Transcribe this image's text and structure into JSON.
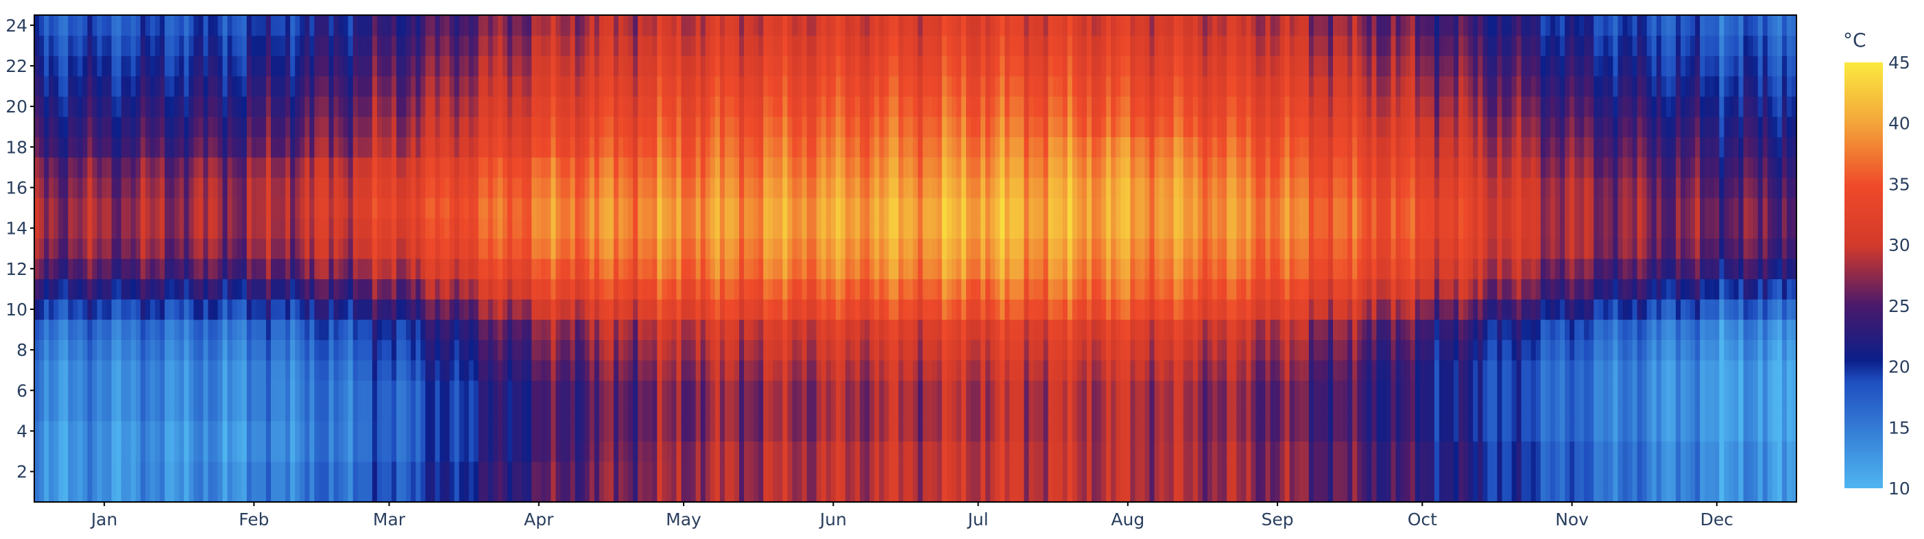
{
  "chart_data": {
    "type": "heatmap",
    "title": "",
    "xlabel": "",
    "ylabel": "",
    "x_tick_labels": [
      "Jan",
      "Feb",
      "Mar",
      "Apr",
      "May",
      "Jun",
      "Jul",
      "Aug",
      "Sep",
      "Oct",
      "Nov",
      "Dec"
    ],
    "y_ticks": [
      2,
      4,
      6,
      8,
      10,
      12,
      14,
      16,
      18,
      20,
      22,
      24
    ],
    "y_range": [
      0.5,
      24.5
    ],
    "x_range_days": [
      1,
      365
    ],
    "colorbar": {
      "title": "°C",
      "range": [
        10,
        45
      ],
      "ticks": [
        10,
        15,
        20,
        25,
        30,
        35,
        40,
        45
      ],
      "colorscale": [
        [
          0.0,
          "#4fb5f0"
        ],
        [
          0.25,
          "#1f4fc0"
        ],
        [
          0.3,
          "#0b1f8a"
        ],
        [
          0.43,
          "#4a1a6b"
        ],
        [
          0.57,
          "#d23a2a"
        ],
        [
          0.71,
          "#ef4a2a"
        ],
        [
          0.86,
          "#f3a63a"
        ],
        [
          1.0,
          "#fbe93f"
        ]
      ]
    },
    "series": [
      {
        "name": "Jan",
        "profile": [
          13,
          13,
          13,
          13,
          14,
          14,
          14,
          15,
          16,
          19,
          22,
          25,
          27,
          28,
          28,
          27,
          26,
          24,
          23,
          22,
          21,
          20,
          19,
          18
        ]
      },
      {
        "name": "Feb",
        "profile": [
          14,
          14,
          13,
          13,
          14,
          14,
          14,
          15,
          16,
          19,
          22,
          25,
          27,
          28,
          28,
          28,
          27,
          25,
          24,
          23,
          22,
          21,
          20,
          19
        ]
      },
      {
        "name": "Mar",
        "profile": [
          18,
          18,
          17,
          17,
          17,
          17,
          18,
          19,
          20,
          23,
          26,
          29,
          31,
          32,
          33,
          32,
          31,
          29,
          28,
          27,
          26,
          25,
          24,
          23
        ]
      },
      {
        "name": "Apr",
        "profile": [
          25,
          25,
          24,
          24,
          24,
          24,
          25,
          26,
          27,
          30,
          33,
          35,
          37,
          38,
          38,
          37,
          36,
          34,
          33,
          32,
          31,
          30,
          29,
          28
        ]
      },
      {
        "name": "May",
        "profile": [
          28,
          28,
          28,
          27,
          27,
          27,
          28,
          29,
          30,
          33,
          35,
          37,
          38,
          39,
          39,
          38,
          37,
          36,
          35,
          34,
          33,
          32,
          31,
          30
        ]
      },
      {
        "name": "Jun",
        "profile": [
          29,
          29,
          29,
          28,
          28,
          28,
          29,
          30,
          31,
          34,
          36,
          38,
          39,
          40,
          40,
          39,
          38,
          37,
          36,
          35,
          34,
          33,
          32,
          31
        ]
      },
      {
        "name": "Jul",
        "profile": [
          30,
          30,
          30,
          29,
          29,
          29,
          30,
          31,
          32,
          35,
          37,
          39,
          40,
          41,
          41,
          40,
          39,
          38,
          37,
          36,
          35,
          34,
          33,
          32
        ]
      },
      {
        "name": "Aug",
        "profile": [
          29,
          29,
          29,
          29,
          29,
          29,
          30,
          31,
          32,
          35,
          37,
          38,
          39,
          40,
          40,
          40,
          39,
          38,
          36,
          35,
          34,
          33,
          32,
          31
        ]
      },
      {
        "name": "Sep",
        "profile": [
          27,
          27,
          27,
          26,
          26,
          26,
          27,
          28,
          29,
          32,
          34,
          36,
          37,
          38,
          38,
          37,
          36,
          35,
          34,
          33,
          32,
          31,
          30,
          29
        ]
      },
      {
        "name": "Oct",
        "profile": [
          23,
          23,
          23,
          22,
          22,
          22,
          22,
          23,
          24,
          27,
          30,
          32,
          33,
          34,
          34,
          33,
          32,
          31,
          30,
          29,
          28,
          27,
          26,
          25
        ]
      },
      {
        "name": "Nov",
        "profile": [
          17,
          17,
          17,
          16,
          16,
          16,
          16,
          17,
          18,
          21,
          24,
          26,
          28,
          28,
          28,
          28,
          27,
          26,
          25,
          24,
          23,
          22,
          21,
          20
        ]
      },
      {
        "name": "Dec",
        "profile": [
          13,
          13,
          13,
          12,
          12,
          12,
          12,
          13,
          14,
          17,
          20,
          23,
          25,
          26,
          26,
          25,
          24,
          23,
          22,
          21,
          20,
          19,
          18,
          17
        ]
      }
    ]
  }
}
